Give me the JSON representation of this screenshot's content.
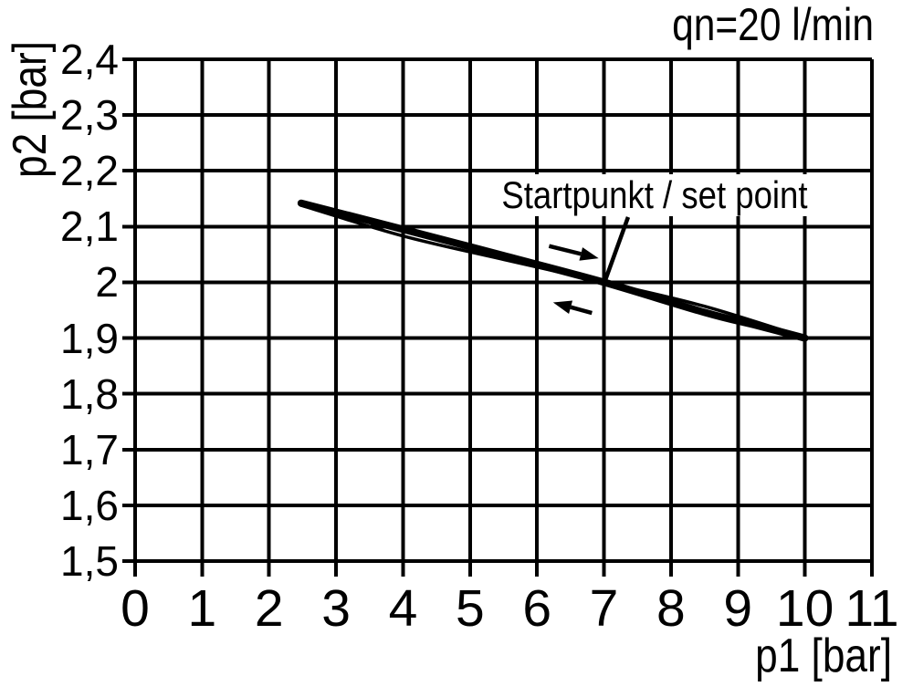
{
  "chart_data": {
    "type": "line",
    "title": "qn=20 l/min",
    "xlabel": "p1 [bar]",
    "ylabel": "p2 [bar]",
    "xlim": [
      0,
      11
    ],
    "ylim": [
      1.5,
      2.4
    ],
    "x_ticks": [
      0,
      1,
      2,
      3,
      4,
      5,
      6,
      7,
      8,
      9,
      10,
      11
    ],
    "x_tick_labels": [
      "0",
      "1",
      "2",
      "3",
      "4",
      "5",
      "6",
      "7",
      "8",
      "9",
      "10",
      "11"
    ],
    "y_ticks": [
      2.4,
      2.3,
      2.2,
      2.1,
      2.0,
      1.9,
      1.8,
      1.7,
      1.6,
      1.5
    ],
    "y_tick_labels": [
      "2,4",
      "2,3",
      "2,2",
      "2,1",
      "2",
      "1,9",
      "1,8",
      "1,7",
      "1,6",
      "1,5"
    ],
    "grid": true,
    "legend": "none",
    "series": [
      {
        "name": "hysteresis-branch-thick",
        "stroke_width": 8,
        "points": [
          [
            2.48,
            2.142
          ],
          [
            4,
            2.095
          ],
          [
            5.5,
            2.048
          ],
          [
            7,
            2.0
          ],
          [
            8.5,
            1.946
          ],
          [
            9.3,
            1.922
          ],
          [
            10,
            1.9
          ]
        ]
      },
      {
        "name": "hysteresis-branch-thin",
        "stroke_width": 3.5,
        "points": [
          [
            2.48,
            2.138
          ],
          [
            4,
            2.083
          ],
          [
            5.5,
            2.041
          ],
          [
            7,
            2.0
          ],
          [
            8.5,
            1.957
          ],
          [
            10,
            1.901
          ]
        ]
      }
    ],
    "annotations": {
      "set_point": {
        "label": "Startpunkt / set point",
        "x": 7.0,
        "y": 2.0
      },
      "pointer_line": {
        "from": [
          7.36,
          2.117
        ],
        "to": [
          7.02,
          2.004
        ]
      },
      "arrows": [
        {
          "name": "forward-arrow",
          "from": [
            6.18,
            2.065
          ],
          "to": [
            6.92,
            2.043
          ]
        },
        {
          "name": "back-arrow",
          "from": [
            6.82,
            1.945
          ],
          "to": [
            6.24,
            1.964
          ]
        }
      ]
    },
    "colors": {
      "line": "#000000",
      "grid": "#000000",
      "background": "#ffffff",
      "text": "#000000"
    }
  },
  "labels": {
    "flow_annotation": "qn=20 l/min",
    "y_axis_title": "p2 [bar]",
    "x_axis_title": "p1 [bar]",
    "set_point": "Startpunkt / set point"
  }
}
